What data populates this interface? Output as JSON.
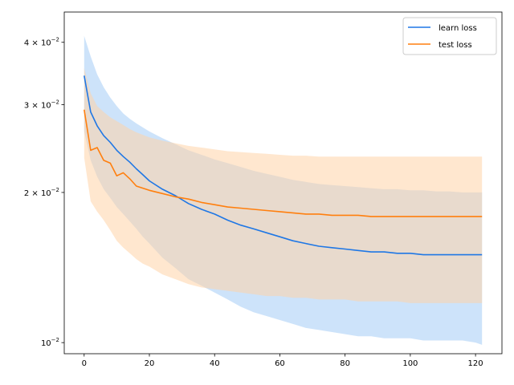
{
  "chart_data": {
    "type": "line",
    "title": "",
    "xlabel": "",
    "ylabel": "",
    "xlim": [
      -6.1,
      128.1
    ],
    "ylim": [
      0.0095,
      0.046
    ],
    "yscale": "log",
    "grid": false,
    "legend_position": "top-right",
    "x_ticks": [
      0,
      20,
      40,
      60,
      80,
      100,
      120
    ],
    "x_tick_labels": [
      "0",
      "20",
      "40",
      "60",
      "80",
      "100",
      "120"
    ],
    "y_ticks": [
      0.01,
      0.02,
      0.03,
      0.04
    ],
    "y_tick_labels": [
      {
        "mantissa": "10",
        "exponent": "−2"
      },
      {
        "mantissa": "2 × 10",
        "exponent": "−2"
      },
      {
        "mantissa": "3 × 10",
        "exponent": "−2"
      },
      {
        "mantissa": "4 × 10",
        "exponent": "−2"
      }
    ],
    "series": [
      {
        "name": "learn loss",
        "color": "#1f77e5",
        "band_color": "#90c2f5",
        "x": [
          0,
          2,
          4,
          6,
          8,
          10,
          12,
          14,
          16,
          18,
          20,
          24,
          28,
          32,
          36,
          40,
          44,
          48,
          52,
          56,
          60,
          64,
          68,
          72,
          76,
          80,
          84,
          88,
          92,
          96,
          100,
          104,
          108,
          112,
          116,
          120,
          122
        ],
        "y": [
          0.0343,
          0.029,
          0.0272,
          0.026,
          0.0252,
          0.0243,
          0.0236,
          0.023,
          0.0223,
          0.0217,
          0.0211,
          0.0203,
          0.0197,
          0.019,
          0.0185,
          0.0181,
          0.0176,
          0.0172,
          0.0169,
          0.0166,
          0.0163,
          0.016,
          0.0158,
          0.0156,
          0.0155,
          0.0154,
          0.0153,
          0.0152,
          0.0152,
          0.0151,
          0.0151,
          0.015,
          0.015,
          0.015,
          0.015,
          0.015,
          0.015
        ],
        "upper": [
          0.0412,
          0.0375,
          0.0345,
          0.0325,
          0.031,
          0.0298,
          0.0288,
          0.0281,
          0.0275,
          0.027,
          0.0265,
          0.0257,
          0.025,
          0.0243,
          0.0238,
          0.0233,
          0.0229,
          0.0225,
          0.0221,
          0.0218,
          0.0215,
          0.0212,
          0.021,
          0.0208,
          0.0207,
          0.0206,
          0.0205,
          0.0204,
          0.0203,
          0.0203,
          0.0202,
          0.0202,
          0.0201,
          0.0201,
          0.02,
          0.02,
          0.02
        ],
        "lower": [
          0.0265,
          0.0232,
          0.0215,
          0.0203,
          0.0195,
          0.0187,
          0.0181,
          0.0175,
          0.0169,
          0.0163,
          0.0158,
          0.0148,
          0.0141,
          0.0134,
          0.013,
          0.0126,
          0.0122,
          0.0118,
          0.0115,
          0.0113,
          0.0111,
          0.0109,
          0.0107,
          0.0106,
          0.0105,
          0.0104,
          0.0103,
          0.0103,
          0.0102,
          0.0102,
          0.0102,
          0.0101,
          0.0101,
          0.0101,
          0.0101,
          0.01,
          0.0099
        ]
      },
      {
        "name": "test loss",
        "color": "#ff7f0e",
        "band_color": "#ffd3a8",
        "x": [
          0,
          2,
          4,
          6,
          8,
          10,
          12,
          14,
          16,
          18,
          20,
          24,
          28,
          32,
          36,
          40,
          44,
          48,
          52,
          56,
          60,
          64,
          68,
          72,
          76,
          80,
          84,
          88,
          92,
          96,
          100,
          104,
          108,
          112,
          116,
          120,
          122
        ],
        "y": [
          0.0293,
          0.0243,
          0.0246,
          0.0232,
          0.0229,
          0.0216,
          0.0219,
          0.0213,
          0.0206,
          0.0204,
          0.0202,
          0.0199,
          0.0196,
          0.0194,
          0.0191,
          0.0189,
          0.0187,
          0.0186,
          0.0185,
          0.0184,
          0.0183,
          0.0182,
          0.0181,
          0.0181,
          0.018,
          0.018,
          0.018,
          0.0179,
          0.0179,
          0.0179,
          0.0179,
          0.0179,
          0.0179,
          0.0179,
          0.0179,
          0.0179,
          0.0179
        ],
        "upper": [
          0.0355,
          0.0316,
          0.0298,
          0.029,
          0.0283,
          0.0278,
          0.0273,
          0.0268,
          0.0264,
          0.0261,
          0.0258,
          0.0254,
          0.0251,
          0.0248,
          0.0246,
          0.0244,
          0.0242,
          0.0241,
          0.024,
          0.0239,
          0.0238,
          0.0237,
          0.0237,
          0.0236,
          0.0236,
          0.0236,
          0.0236,
          0.0236,
          0.0236,
          0.0236,
          0.0236,
          0.0236,
          0.0236,
          0.0236,
          0.0236,
          0.0236,
          0.0236
        ],
        "lower": [
          0.0235,
          0.0192,
          0.0183,
          0.0176,
          0.0168,
          0.016,
          0.0155,
          0.0151,
          0.0147,
          0.0144,
          0.0142,
          0.0137,
          0.0134,
          0.0131,
          0.0129,
          0.0128,
          0.0127,
          0.0126,
          0.0125,
          0.0124,
          0.0124,
          0.0123,
          0.0123,
          0.0122,
          0.0122,
          0.0122,
          0.0121,
          0.0121,
          0.0121,
          0.0121,
          0.012,
          0.012,
          0.012,
          0.012,
          0.012,
          0.012,
          0.012
        ]
      }
    ]
  }
}
